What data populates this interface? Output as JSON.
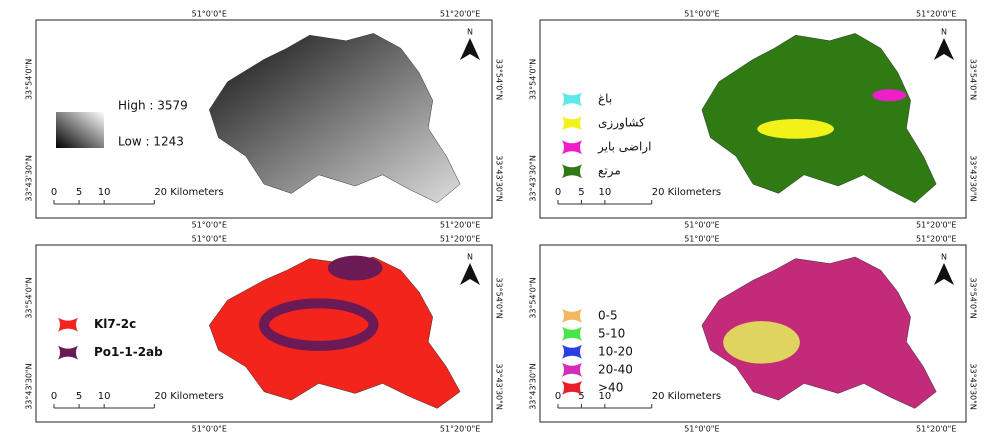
{
  "panels": [
    {
      "coords": {
        "top": [
          "51°0'0\"E",
          "51°20'0\"E"
        ],
        "bottom": [
          "51°0'0\"E",
          "51°20'0\"E"
        ],
        "left": [
          "33°54'0\"N",
          "33°43'30\"N"
        ],
        "right": [
          "33°54'0\"N",
          "33°43'30\"N"
        ]
      },
      "north": "N",
      "scale": [
        "0",
        "5",
        "10",
        "20 Kilometers"
      ],
      "legend": [
        {
          "label": "High : 3579"
        },
        {
          "label": "Low : 1243"
        }
      ]
    },
    {
      "coords": {
        "top": [
          "51°0'0\"E",
          "51°20'0\"E"
        ],
        "bottom": [
          "51°0'0\"E",
          "51°20'0\"E"
        ],
        "left": [
          "33°54'0\"N",
          "33°43'30\"N"
        ],
        "right": [
          "33°54'0\"N",
          "33°43'30\"N"
        ]
      },
      "north": "N",
      "scale": [
        "0",
        "5",
        "10",
        "20 Kilometers"
      ],
      "legend": [
        {
          "label": "باغ",
          "color": "#5ee8e8"
        },
        {
          "label": "کشاورزی",
          "color": "#f2f21a"
        },
        {
          "label": "اراضی بایر",
          "color": "#ee1fc8"
        },
        {
          "label": "مرتع",
          "color": "#2f7a12"
        }
      ]
    },
    {
      "coords": {
        "top": [
          "51°0'0\"E",
          "51°20'0\"E"
        ],
        "bottom": [
          "51°0'0\"E",
          "51°20'0\"E"
        ],
        "left": [
          "33°54'0\"N",
          "33°43'30\"N"
        ],
        "right": [
          "33°54'0\"N",
          "33°43'30\"N"
        ]
      },
      "north": "N",
      "scale": [
        "0",
        "5",
        "10",
        "20 Kilometers"
      ],
      "legend": [
        {
          "label": "Kl7-2c",
          "color": "#f2241c"
        },
        {
          "label": "Po1-1-2ab",
          "color": "#6b1a55"
        }
      ]
    },
    {
      "coords": {
        "top": [
          "51°0'0\"E",
          "51°20'0\"E"
        ],
        "bottom": [
          "51°0'0\"E",
          "51°20'0\"E"
        ],
        "left": [
          "33°54'0\"N",
          "33°43'30\"N"
        ],
        "right": [
          "33°54'0\"N",
          "33°43'30\"N"
        ]
      },
      "north": "N",
      "scale": [
        "0",
        "5",
        "10",
        "20 Kilometers"
      ],
      "legend": [
        {
          "label": "0-5",
          "color": "#f2b760"
        },
        {
          "label": "5-10",
          "color": "#46e646"
        },
        {
          "label": "10-20",
          "color": "#2a3ee6"
        },
        {
          "label": "20-40",
          "color": "#d62ab8"
        },
        {
          "label": ">40",
          "color": "#e61e2a"
        }
      ]
    }
  ]
}
